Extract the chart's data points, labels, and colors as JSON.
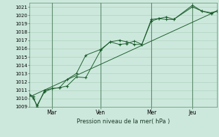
{
  "background_color": "#cce8dc",
  "grid_color": "#aaccbb",
  "line_color": "#1a5c2a",
  "marker_color": "#1a5c2a",
  "xlabel": "Pression niveau de la mer( hPa )",
  "ylim": [
    1009,
    1021.5
  ],
  "yticks": [
    1009,
    1010,
    1011,
    1012,
    1013,
    1014,
    1015,
    1016,
    1017,
    1018,
    1019,
    1020,
    1021
  ],
  "xtick_labels": [
    "Mar",
    "Ven",
    "Mer",
    "Jeu"
  ],
  "xtick_positions": [
    0.12,
    0.38,
    0.65,
    0.87
  ],
  "xlim": [
    0,
    1.0
  ],
  "series1_x": [
    0.0,
    0.02,
    0.04,
    0.08,
    0.12,
    0.16,
    0.2,
    0.25,
    0.3,
    0.38,
    0.43,
    0.48,
    0.52,
    0.56,
    0.6,
    0.65,
    0.69,
    0.73,
    0.77,
    0.87,
    0.92,
    0.97,
    1.0
  ],
  "series1_y": [
    1010.5,
    1010.0,
    1009.2,
    1010.8,
    1011.2,
    1011.3,
    1011.5,
    1012.6,
    1012.5,
    1015.8,
    1016.8,
    1017.0,
    1016.8,
    1016.5,
    1016.5,
    1019.3,
    1019.6,
    1019.8,
    1019.5,
    1021.2,
    1020.5,
    1020.3,
    1020.5
  ],
  "series2_x": [
    0.0,
    0.02,
    0.04,
    0.08,
    0.12,
    0.16,
    0.2,
    0.25,
    0.3,
    0.38,
    0.43,
    0.48,
    0.52,
    0.56,
    0.6,
    0.65,
    0.69,
    0.73,
    0.77,
    0.87,
    0.92,
    0.97,
    1.0
  ],
  "series2_y": [
    1010.5,
    1010.2,
    1009.0,
    1011.0,
    1011.2,
    1011.3,
    1012.3,
    1013.0,
    1015.2,
    1015.9,
    1016.8,
    1016.5,
    1016.6,
    1016.9,
    1016.5,
    1019.5,
    1019.6,
    1019.5,
    1019.5,
    1021.0,
    1020.5,
    1020.2,
    1020.5
  ],
  "series3_x": [
    0.0,
    1.0
  ],
  "series3_y": [
    1010.2,
    1020.5
  ],
  "vlines_x": [
    0.12,
    0.38,
    0.65,
    0.87
  ],
  "figsize": [
    3.2,
    2.0
  ],
  "dpi": 100
}
